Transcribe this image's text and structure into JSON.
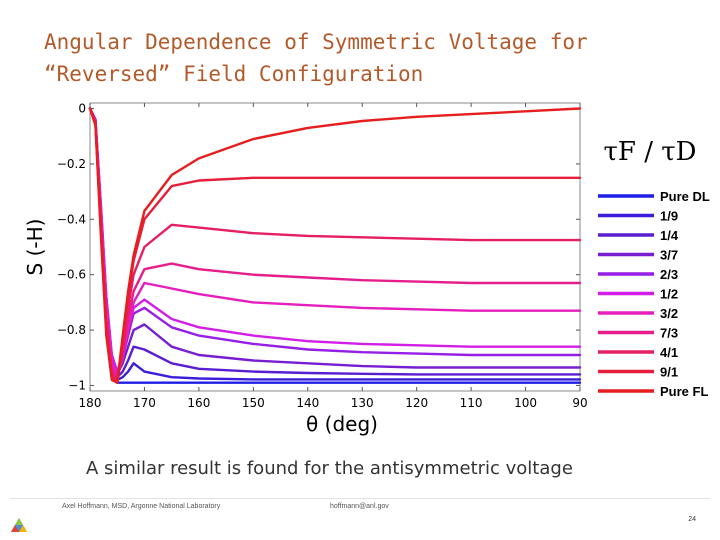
{
  "slide": {
    "title_line1": "Angular Dependence of Symmetric Voltage for",
    "title_line2": "“Reversed” Field Configuration",
    "caption": "A similar result is found for the antisymmetric voltage",
    "footer_left": "Axel Hoffmann, MSD, Argonne National Laboratory",
    "footer_mid": "hoffmann@anl.gov",
    "page_number": "24",
    "logo_icon": "argonne-triangle-logo-icon",
    "colors": {
      "title": "#b45a2a",
      "pure_dl": "#1e1ee6",
      "pure_fl": "#e61e1e"
    }
  },
  "chart_data": {
    "type": "line",
    "xlabel": "θ (deg)",
    "ylabel": "S (-H)",
    "x_reversed": true,
    "xlim": [
      180,
      90
    ],
    "ylim": [
      -1.02,
      0.02
    ],
    "xticks": [
      "180",
      "170",
      "160",
      "150",
      "140",
      "130",
      "120",
      "110",
      "100",
      "90"
    ],
    "yticks": [
      "0",
      "−0.2",
      "−0.4",
      "−0.6",
      "−0.8",
      "−1"
    ],
    "legend_title": "τF / τD",
    "legend_position": "right, outside plot",
    "x": [
      180,
      179,
      178,
      177,
      176,
      175,
      174,
      173,
      172,
      170,
      165,
      160,
      150,
      140,
      130,
      120,
      110,
      100,
      90
    ],
    "series": [
      {
        "name": "Pure DL",
        "color": "#1e1ee6",
        "values": [
          0,
          -0.04,
          -0.4,
          -0.78,
          -0.97,
          -0.99,
          -0.99,
          -0.99,
          -0.99,
          -0.99,
          -0.99,
          -0.99,
          -0.99,
          -0.99,
          -0.99,
          -0.99,
          -0.99,
          -0.99,
          -0.99
        ]
      },
      {
        "name": "1/9",
        "color": "#3b1edc",
        "values": [
          0,
          -0.04,
          -0.38,
          -0.75,
          -0.95,
          -0.98,
          -0.97,
          -0.95,
          -0.92,
          -0.95,
          -0.97,
          -0.975,
          -0.978,
          -0.978,
          -0.978,
          -0.978,
          -0.978,
          -0.978,
          -0.978
        ]
      },
      {
        "name": "1/4",
        "color": "#5a1ed2",
        "values": [
          0,
          -0.04,
          -0.37,
          -0.72,
          -0.93,
          -0.97,
          -0.95,
          -0.91,
          -0.86,
          -0.87,
          -0.92,
          -0.94,
          -0.95,
          -0.955,
          -0.958,
          -0.96,
          -0.96,
          -0.96,
          -0.96
        ]
      },
      {
        "name": "3/7",
        "color": "#781ed2",
        "values": [
          0,
          -0.04,
          -0.36,
          -0.7,
          -0.91,
          -0.96,
          -0.92,
          -0.86,
          -0.8,
          -0.78,
          -0.86,
          -0.89,
          -0.91,
          -0.92,
          -0.93,
          -0.935,
          -0.935,
          -0.935,
          -0.935
        ]
      },
      {
        "name": "2/3",
        "color": "#961ee6",
        "values": [
          0,
          -0.04,
          -0.35,
          -0.68,
          -0.89,
          -0.95,
          -0.9,
          -0.82,
          -0.74,
          -0.72,
          -0.79,
          -0.82,
          -0.85,
          -0.87,
          -0.88,
          -0.885,
          -0.89,
          -0.89,
          -0.89
        ]
      },
      {
        "name": "1/2",
        "color": "#d21ee6",
        "values": [
          0,
          -0.04,
          -0.35,
          -0.68,
          -0.89,
          -0.95,
          -0.89,
          -0.8,
          -0.72,
          -0.69,
          -0.76,
          -0.79,
          -0.82,
          -0.84,
          -0.85,
          -0.855,
          -0.86,
          -0.86,
          -0.86
        ]
      },
      {
        "name": "3/2",
        "color": "#e61ebe",
        "values": [
          0,
          -0.05,
          -0.38,
          -0.72,
          -0.92,
          -0.97,
          -0.9,
          -0.8,
          -0.7,
          -0.63,
          -0.65,
          -0.67,
          -0.7,
          -0.71,
          -0.72,
          -0.725,
          -0.73,
          -0.73,
          -0.73
        ]
      },
      {
        "name": "7/3",
        "color": "#e61e8c",
        "values": [
          0,
          -0.05,
          -0.4,
          -0.75,
          -0.94,
          -0.98,
          -0.88,
          -0.76,
          -0.66,
          -0.58,
          -0.56,
          -0.58,
          -0.6,
          -0.61,
          -0.62,
          -0.625,
          -0.63,
          -0.63,
          -0.63
        ]
      },
      {
        "name": "4/1",
        "color": "#e61e64",
        "values": [
          0,
          -0.05,
          -0.42,
          -0.78,
          -0.96,
          -0.99,
          -0.86,
          -0.72,
          -0.6,
          -0.5,
          -0.42,
          -0.43,
          -0.45,
          -0.46,
          -0.465,
          -0.47,
          -0.475,
          -0.475,
          -0.475
        ]
      },
      {
        "name": "9/1",
        "color": "#e61e3c",
        "values": [
          0,
          -0.05,
          -0.44,
          -0.8,
          -0.97,
          -0.99,
          -0.84,
          -0.68,
          -0.55,
          -0.4,
          -0.28,
          -0.26,
          -0.25,
          -0.25,
          -0.25,
          -0.25,
          -0.25,
          -0.25,
          -0.25
        ]
      },
      {
        "name": "Pure FL",
        "color": "#e61e1e",
        "values": [
          0,
          -0.06,
          -0.46,
          -0.82,
          -0.98,
          -0.99,
          -0.82,
          -0.66,
          -0.53,
          -0.37,
          -0.24,
          -0.18,
          -0.11,
          -0.07,
          -0.045,
          -0.03,
          -0.02,
          -0.01,
          0
        ]
      }
    ]
  }
}
